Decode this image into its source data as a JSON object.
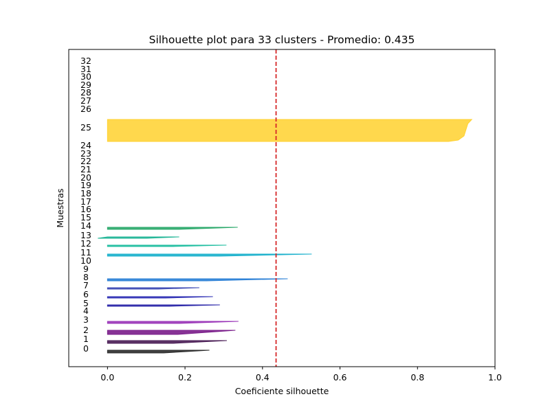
{
  "chart_data": {
    "type": "silhouette",
    "title": "Silhouette plot para 33 clusters - Promedio: 0.435",
    "xlabel": "Coeficiente silhouette",
    "ylabel": "Muestras",
    "xlim": [
      -0.1,
      1.0
    ],
    "xticks": [
      "0.0",
      "0.2",
      "0.4",
      "0.6",
      "0.8",
      "1.0"
    ],
    "xtick_values": [
      0.0,
      0.2,
      0.4,
      0.6,
      0.8,
      1.0
    ],
    "average": 0.435,
    "average_line_color": "#d62728",
    "grid": false,
    "clusters": [
      {
        "label": "0",
        "min": 0.0,
        "max": 0.263,
        "color": "#2b2b2b"
      },
      {
        "label": "1",
        "min": 0.0,
        "max": 0.308,
        "color": "#4a1d55"
      },
      {
        "label": "2",
        "min": 0.0,
        "max": 0.33,
        "color": "#7a1d8a"
      },
      {
        "label": "3",
        "min": 0.0,
        "max": 0.338,
        "color": "#9a35b8"
      },
      {
        "label": "4",
        "min": 0.0,
        "max": 0.0,
        "color": "#6a2bb0"
      },
      {
        "label": "5",
        "min": 0.0,
        "max": 0.29,
        "color": "#2a26a8"
      },
      {
        "label": "6",
        "min": 0.0,
        "max": 0.272,
        "color": "#2e2fb4"
      },
      {
        "label": "7",
        "min": 0.0,
        "max": 0.237,
        "color": "#3d49b4"
      },
      {
        "label": "8",
        "min": 0.0,
        "max": 0.465,
        "color": "#2a7fd6"
      },
      {
        "label": "9",
        "min": 0.0,
        "max": 0.0,
        "color": "#1f9ad0"
      },
      {
        "label": "10",
        "min": 0.0,
        "max": 0.527,
        "color": "#1ab0cc"
      },
      {
        "label": "11",
        "min": 0.0,
        "max": 0.0,
        "color": "#1fb5b0"
      },
      {
        "label": "12",
        "min": 0.0,
        "max": 0.307,
        "color": "#1fbea0"
      },
      {
        "label": "13",
        "min": -0.025,
        "max": 0.185,
        "color": "#1fb596"
      },
      {
        "label": "14",
        "min": 0.0,
        "max": 0.336,
        "color": "#2aa86a"
      },
      {
        "label": "15",
        "min": 0.0,
        "max": 0.0,
        "color": "#3aad55"
      },
      {
        "label": "16",
        "min": 0.0,
        "max": 0.0,
        "color": "#4ab44a"
      },
      {
        "label": "17",
        "min": 0.0,
        "max": 0.0,
        "color": "#5ab83d"
      },
      {
        "label": "18",
        "min": 0.0,
        "max": 0.0,
        "color": "#70bd35"
      },
      {
        "label": "19",
        "min": 0.0,
        "max": 0.0,
        "color": "#88c232"
      },
      {
        "label": "20",
        "min": 0.0,
        "max": 0.0,
        "color": "#a0c630"
      },
      {
        "label": "21",
        "min": 0.0,
        "max": 0.0,
        "color": "#b8c92e"
      },
      {
        "label": "22",
        "min": 0.0,
        "max": 0.0,
        "color": "#cccc2c"
      },
      {
        "label": "23",
        "min": 0.0,
        "max": 0.0,
        "color": "#ddca2a"
      },
      {
        "label": "24",
        "min": 0.0,
        "max": 0.0,
        "color": "#ecc62a"
      },
      {
        "label": "25",
        "min": 0.0,
        "max": 0.94,
        "color": "#ffd12e"
      },
      {
        "label": "26",
        "min": 0.0,
        "max": 0.0,
        "color": "#ffc83a"
      },
      {
        "label": "27",
        "min": 0.0,
        "max": 0.0,
        "color": "#ffbd45"
      },
      {
        "label": "28",
        "min": 0.0,
        "max": 0.0,
        "color": "#ffb04e"
      },
      {
        "label": "29",
        "min": 0.0,
        "max": 0.0,
        "color": "#ffa356"
      },
      {
        "label": "30",
        "min": 0.0,
        "max": 0.0,
        "color": "#ff955e"
      },
      {
        "label": "31",
        "min": 0.0,
        "max": 0.0,
        "color": "#ff8766"
      },
      {
        "label": "32",
        "min": 0.0,
        "max": 0.0,
        "color": "#ff7a6e"
      }
    ]
  }
}
